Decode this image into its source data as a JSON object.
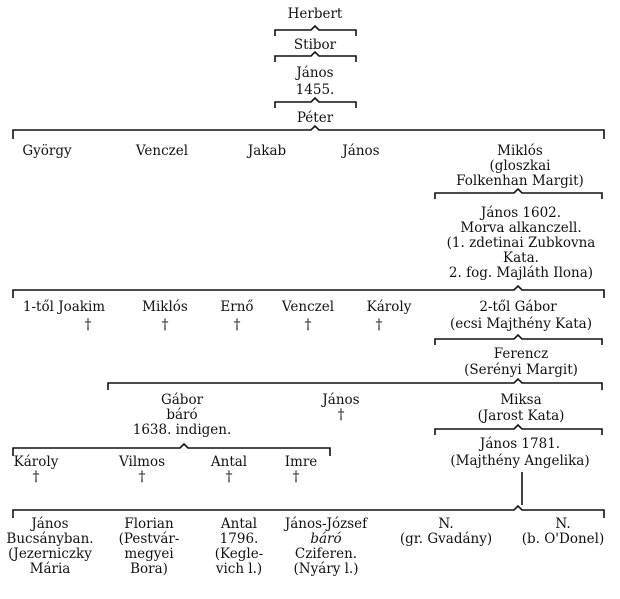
{
  "gen1": {
    "herbert": "Herbert",
    "stibor": "Stibor",
    "janos": "János",
    "year_1455": "1455.",
    "peter": "Péter"
  },
  "gen2": {
    "gyorgy": "György",
    "venczel": "Venczel",
    "jakab": "Jakab",
    "janos": "János",
    "miklos": "Miklós",
    "miklos_wife": "(gloszkai\nFolkenhan Margit)"
  },
  "janos1602": {
    "text": "János 1602.\nMorva alkanczell.\n(1. zdetinai Zubkovna\nKata.\n2. fog. Majláth Ilona)"
  },
  "gen3": {
    "joakim": "1-től  Joakim",
    "miklos": "Miklós",
    "erno": "Ernő",
    "venczel": "Venczel",
    "karoly": "Károly",
    "gabor": "2-től  Gábor",
    "gabor_wife": "(ecsi Majthény Kata)",
    "dagger": "†"
  },
  "ferencz": {
    "name": "Ferencz",
    "wife": "(Serényi Margit)"
  },
  "gen5": {
    "gabor_baro": "Gábor\nbáró\n1638. indigen.",
    "janos": "János",
    "miksa": "Miksa",
    "miksa_wife": "(Jarost Kata)",
    "dagger": "†"
  },
  "gen6": {
    "karoly": "Károly",
    "vilmos": "Vilmos",
    "antal": "Antal",
    "imre": "Imre",
    "janos1781": "János 1781.",
    "janos1781_wife": "(Majthény Angelika)",
    "dagger": "†"
  },
  "gen7": {
    "janos": "János\nBucsányban.\n(Jezerniczky\nMária",
    "florian": "Florian\n(Pestvár-\nmegyei\nBora)",
    "antal": "Antal\n1796.\n(Kegle-\nvich l.)",
    "janos_jozsef_name": "János-József",
    "janos_jozsef_baro": "báró",
    "janos_jozsef_rest": "Cziferen.\n(Nyáry l.)",
    "n1": "N.\n(gr. Gvadány)",
    "n2": "N.\n(b. O'Donel)"
  }
}
